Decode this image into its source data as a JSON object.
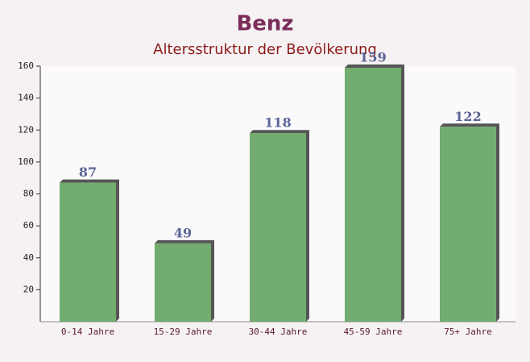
{
  "chart_data": {
    "type": "bar",
    "title": "Benz",
    "subtitle": "Altersstruktur der Bevölkerung",
    "categories": [
      "0-14 Jahre",
      "15-29 Jahre",
      "30-44 Jahre",
      "45-59 Jahre",
      "75+ Jahre"
    ],
    "values": [
      87,
      49,
      118,
      159,
      122
    ],
    "color": "#6aa866",
    "ylim": [
      0,
      160
    ],
    "yticks": [
      20,
      40,
      60,
      80,
      100,
      120,
      140,
      160
    ]
  }
}
